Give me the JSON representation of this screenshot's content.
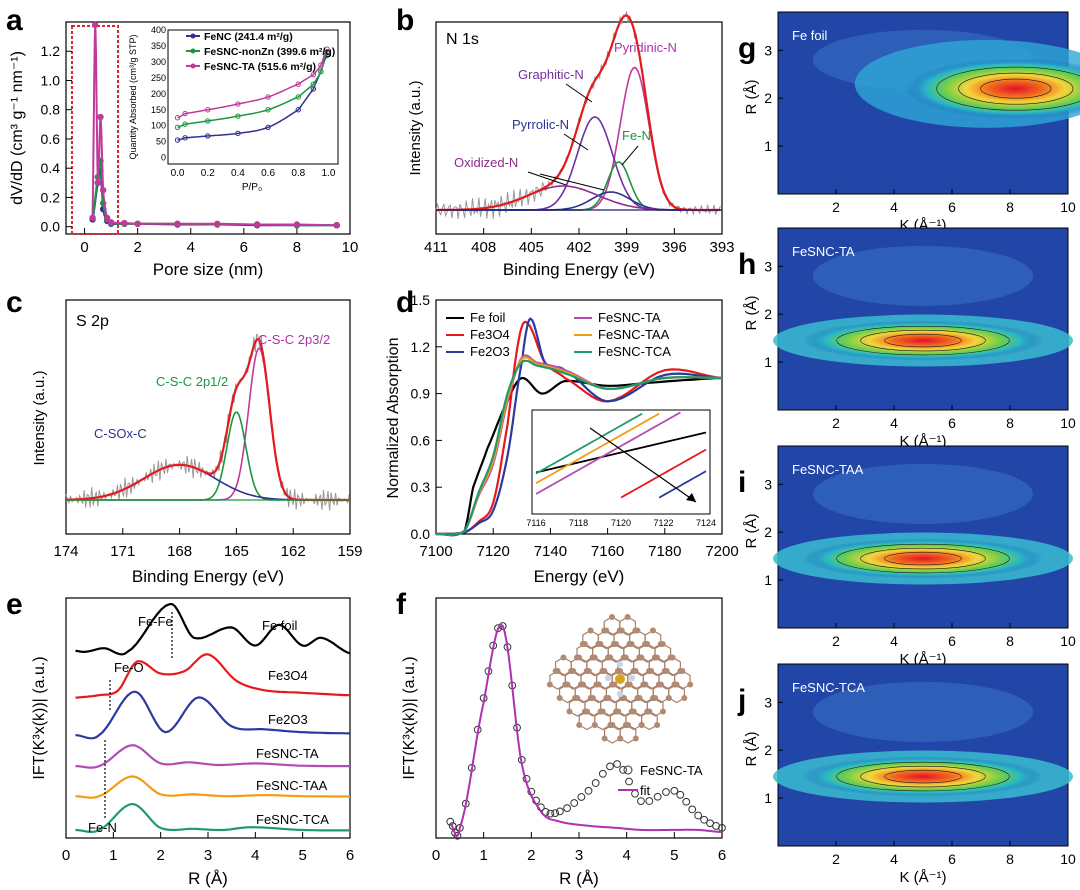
{
  "panels": {
    "a": {
      "letter": "a",
      "xlabel": "Pore size (nm)",
      "ylabel": "dV/dD (cm³ g⁻¹ nm⁻¹)",
      "xticks": [
        "0",
        "2",
        "4",
        "6",
        "8",
        "10"
      ],
      "yticks": [
        "0.0",
        "0.2",
        "0.4",
        "0.6",
        "0.8",
        "1.0",
        "1.2"
      ],
      "legend": [
        "FeNC (241.4 m²/g)",
        "FeSNC-nonZn (399.6 m²/g)",
        "FeSNC-TA (515.6 m²/g)"
      ],
      "inset": {
        "xlabel": "P/P₀",
        "ylabel": "Quantity Absorbed (cm³/g STP)",
        "xticks": [
          "0.0",
          "0.2",
          "0.4",
          "0.6",
          "0.8",
          "1.0"
        ],
        "yticks": [
          "0",
          "50",
          "100",
          "150",
          "200",
          "250",
          "300",
          "350",
          "400"
        ]
      }
    },
    "b": {
      "letter": "b",
      "title": "N 1s",
      "xlabel": "Binding Energy (eV)",
      "ylabel": "Intensity (a.u.)",
      "xticks": [
        "411",
        "408",
        "405",
        "402",
        "399",
        "396",
        "393"
      ],
      "labels": [
        "Pyridinic-N",
        "Graphitic-N",
        "Pyrrolic-N",
        "Fe-N",
        "Oxidized-N"
      ]
    },
    "c": {
      "letter": "c",
      "title": "S 2p",
      "xlabel": "Binding Energy (eV)",
      "ylabel": "Intensity (a.u.)",
      "xticks": [
        "174",
        "171",
        "168",
        "165",
        "162",
        "159"
      ],
      "labels": [
        "C-S-C 2p3/2",
        "C-S-C 2p1/2",
        "C-SOx-C"
      ]
    },
    "d": {
      "letter": "d",
      "xlabel": "Energy (eV)",
      "ylabel": "Normalized Absorption",
      "xticks": [
        "7100",
        "7120",
        "7140",
        "7160",
        "7180",
        "7200"
      ],
      "yticks": [
        "0.0",
        "0.3",
        "0.6",
        "0.9",
        "1.2",
        "1.5"
      ],
      "legend": [
        "Fe foil",
        "Fe3O4",
        "Fe2O3",
        "FeSNC-TA",
        "FeSNC-TAA",
        "FeSNC-TCA"
      ],
      "inset_xticks": [
        "7116",
        "7118",
        "7120",
        "7122",
        "7124"
      ]
    },
    "e": {
      "letter": "e",
      "xlabel": "R (Å)",
      "ylabel": "IFT(K³x(k))| (a.u.)",
      "xticks": [
        "0",
        "1",
        "2",
        "3",
        "4",
        "5",
        "6"
      ],
      "labels": [
        "Fe foil",
        "Fe3O4",
        "Fe2O3",
        "FeSNC-TA",
        "FeSNC-TAA",
        "FeSNC-TCA"
      ],
      "annotations": [
        "Fe-Fe",
        "Fe-O",
        "Fe-N"
      ]
    },
    "f": {
      "letter": "f",
      "xlabel": "R (Å)",
      "ylabel": "IFT(K³x(k))| (a.u.)",
      "xticks": [
        "0",
        "1",
        "2",
        "3",
        "4",
        "5",
        "6"
      ],
      "legend": [
        "FeSNC-TA",
        "fit"
      ]
    },
    "wt": [
      {
        "letter": "g",
        "title": "Fe foil"
      },
      {
        "letter": "h",
        "title": "FeSNC-TA"
      },
      {
        "letter": "i",
        "title": "FeSNC-TAA"
      },
      {
        "letter": "j",
        "title": "FeSNC-TCA"
      }
    ],
    "wt_axes": {
      "xlabel": "K (Å⁻¹)",
      "ylabel": "R (Å)",
      "xticks": [
        "2",
        "4",
        "6",
        "8",
        "10"
      ],
      "yticks": [
        "1",
        "2",
        "3"
      ]
    }
  },
  "chart_data": [
    {
      "type": "line",
      "panel": "a",
      "xlabel": "Pore size (nm)",
      "ylabel": "dV/dD (cm3 g-1 nm-1)",
      "xlim": [
        -0.7,
        10
      ],
      "ylim": [
        -0.05,
        1.4
      ],
      "series": [
        {
          "name": "FeNC (241.4 m²/g)",
          "color": "#2e3192",
          "x": [
            0.3,
            0.5,
            0.6,
            0.7,
            0.85,
            1.0,
            1.5,
            2.0,
            3.5,
            5.0,
            6.5,
            8.0,
            9.5
          ],
          "y": [
            0.05,
            0.3,
            0.38,
            0.12,
            0.04,
            0.02,
            0.02,
            0.02,
            0.015,
            0.015,
            0.01,
            0.01,
            0.01
          ]
        },
        {
          "name": "FeSNC-nonZn (399.6 m²/g)",
          "color": "#1a9641",
          "x": [
            0.3,
            0.5,
            0.6,
            0.7,
            0.85,
            1.0,
            1.5,
            2.0,
            3.5,
            5.0,
            6.5,
            8.0,
            9.5
          ],
          "y": [
            0.06,
            0.34,
            0.45,
            0.16,
            0.05,
            0.025,
            0.02,
            0.02,
            0.02,
            0.015,
            0.015,
            0.01,
            0.01
          ]
        },
        {
          "name": "FeSNC-TA (515.6 m²/g)",
          "color": "#c0399b",
          "x": [
            0.3,
            0.4,
            0.5,
            0.6,
            0.7,
            0.85,
            1.0,
            1.5,
            2.0,
            3.5,
            5.0,
            6.5,
            8.0,
            9.5
          ],
          "y": [
            0.06,
            1.38,
            0.3,
            0.75,
            0.25,
            0.06,
            0.03,
            0.025,
            0.02,
            0.02,
            0.02,
            0.015,
            0.015,
            0.01
          ]
        }
      ],
      "inset": {
        "xlabel": "P/P0",
        "ylabel": "Quantity Absorbed (cm3/g STP)",
        "xlim": [
          0,
          1.0
        ],
        "ylim": [
          0,
          400
        ],
        "series": [
          {
            "name": "FeNC",
            "x": [
              0.0,
              0.05,
              0.2,
              0.4,
              0.6,
              0.8,
              0.9,
              0.95,
              0.99
            ],
            "y": [
              55,
              62,
              68,
              76,
              95,
              150,
              215,
              270,
              320
            ]
          },
          {
            "name": "FeSNC-nonZn",
            "x": [
              0.0,
              0.05,
              0.2,
              0.4,
              0.6,
              0.8,
              0.9,
              0.95,
              0.99
            ],
            "y": [
              95,
              105,
              115,
              130,
              150,
              190,
              230,
              270,
              330
            ]
          },
          {
            "name": "FeSNC-TA",
            "x": [
              0.0,
              0.05,
              0.2,
              0.4,
              0.6,
              0.8,
              0.9,
              0.95,
              0.99
            ],
            "y": [
              125,
              138,
              150,
              168,
              190,
              230,
              260,
              290,
              340
            ]
          }
        ]
      }
    },
    {
      "type": "line",
      "panel": "b",
      "xlabel": "Binding Energy (eV)",
      "ylabel": "Intensity (a.u.)",
      "xlim": [
        411,
        393
      ],
      "series": [
        {
          "name": "Pyridinic-N",
          "center": 398.5,
          "amplitude": 0.95
        },
        {
          "name": "Graphitic-N",
          "center": 401.0,
          "amplitude": 0.62
        },
        {
          "name": "Fe-N",
          "center": 399.5,
          "amplitude": 0.32
        },
        {
          "name": "Pyrrolic-N",
          "center": 400.0,
          "amplitude": 0.12
        },
        {
          "name": "Oxidized-N",
          "center": 403.0,
          "amplitude": 0.16
        }
      ]
    },
    {
      "type": "line",
      "panel": "c",
      "xlabel": "Binding Energy (eV)",
      "ylabel": "Intensity (a.u.)",
      "xlim": [
        174,
        159
      ],
      "series": [
        {
          "name": "C-S-C 2p3/2",
          "center": 163.8,
          "amplitude": 0.95
        },
        {
          "name": "C-S-C 2p1/2",
          "center": 165.0,
          "amplitude": 0.55
        },
        {
          "name": "C-SOx-C",
          "center": 168.0,
          "amplitude": 0.22
        }
      ]
    },
    {
      "type": "line",
      "panel": "d",
      "xlabel": "Energy (eV)",
      "ylabel": "Normalized Absorption",
      "xlim": [
        7100,
        7200
      ],
      "ylim": [
        0,
        1.5
      ],
      "series": [
        {
          "name": "Fe foil",
          "color": "#000000",
          "x": [
            7100,
            7110,
            7113,
            7118,
            7125,
            7130,
            7137,
            7145,
            7160,
            7175,
            7190,
            7200
          ],
          "y": [
            0,
            0.02,
            0.3,
            0.55,
            0.85,
            1.0,
            0.9,
            0.98,
            0.95,
            0.97,
            0.99,
            1.0
          ]
        },
        {
          "name": "Fe3O4",
          "color": "#e41a1c",
          "x": [
            7100,
            7110,
            7115,
            7120,
            7125,
            7129,
            7132,
            7138,
            7145,
            7160,
            7180,
            7200
          ],
          "y": [
            0,
            0.01,
            0.08,
            0.2,
            0.7,
            1.25,
            1.35,
            1.1,
            1.0,
            0.85,
            1.05,
            1.0
          ]
        },
        {
          "name": "Fe2O3",
          "color": "#2b3a9e",
          "x": [
            7100,
            7110,
            7115,
            7120,
            7125,
            7130,
            7133,
            7138,
            7145,
            7160,
            7180,
            7200
          ],
          "y": [
            0,
            0.01,
            0.07,
            0.15,
            0.5,
            1.1,
            1.38,
            1.1,
            1.05,
            0.85,
            1.02,
            1.0
          ]
        },
        {
          "name": "FeSNC-TA",
          "color": "#b44bb5",
          "x": [
            7100,
            7110,
            7115,
            7120,
            7125,
            7130,
            7135,
            7145,
            7160,
            7180,
            7200
          ],
          "y": [
            0,
            0.02,
            0.25,
            0.45,
            0.85,
            1.13,
            1.1,
            1.05,
            0.93,
            1.0,
            1.0
          ]
        },
        {
          "name": "FeSNC-TAA",
          "color": "#f39c12",
          "x": [
            7100,
            7110,
            7115,
            7120,
            7125,
            7130,
            7135,
            7145,
            7160,
            7180,
            7200
          ],
          "y": [
            0,
            0.02,
            0.26,
            0.47,
            0.87,
            1.12,
            1.09,
            1.04,
            0.93,
            1.0,
            1.0
          ]
        },
        {
          "name": "FeSNC-TCA",
          "color": "#1f9a6b",
          "x": [
            7100,
            7110,
            7115,
            7120,
            7125,
            7130,
            7135,
            7145,
            7160,
            7180,
            7200
          ],
          "y": [
            0,
            0.02,
            0.27,
            0.5,
            0.9,
            1.1,
            1.08,
            1.03,
            0.93,
            1.0,
            1.0
          ]
        }
      ]
    },
    {
      "type": "line",
      "panel": "e",
      "xlabel": "R (Å)",
      "ylabel": "IFT(K3x(k))| (a.u.)",
      "xlim": [
        0,
        6
      ],
      "series": [
        {
          "name": "Fe foil",
          "color": "#000000",
          "peaks_R": [
            2.2,
            4.5
          ]
        },
        {
          "name": "Fe3O4",
          "color": "#e41a1c",
          "peaks_R": [
            1.5,
            3.0
          ]
        },
        {
          "name": "Fe2O3",
          "color": "#2b3a9e",
          "peaks_R": [
            1.45,
            2.8
          ]
        },
        {
          "name": "FeSNC-TA",
          "color": "#b44bb5",
          "peaks_R": [
            1.4
          ]
        },
        {
          "name": "FeSNC-TAA",
          "color": "#f39c12",
          "peaks_R": [
            1.4
          ]
        },
        {
          "name": "FeSNC-TCA",
          "color": "#1f9a6b",
          "peaks_R": [
            1.4
          ]
        }
      ]
    },
    {
      "type": "line",
      "panel": "f",
      "xlabel": "R (Å)",
      "ylabel": "IFT(K3x(k))| (a.u.)",
      "xlim": [
        0,
        6
      ],
      "series": [
        {
          "name": "FeSNC-TA",
          "color": "#333333",
          "x": [
            0.3,
            0.5,
            1.0,
            1.4,
            1.8,
            2.2,
            2.6,
            3.2,
            3.8,
            4.3,
            5.0,
            5.5,
            6.0
          ],
          "y": [
            0.05,
            0.02,
            0.65,
            1.0,
            0.35,
            0.12,
            0.1,
            0.2,
            0.33,
            0.15,
            0.2,
            0.08,
            0.02
          ]
        },
        {
          "name": "fit",
          "color": "#b030b0",
          "x": [
            0.3,
            0.5,
            1.0,
            1.4,
            1.8,
            2.2,
            2.6,
            3.2,
            3.8,
            4.3,
            5.0,
            5.5,
            6.0
          ],
          "y": [
            0.04,
            0.02,
            0.63,
            1.0,
            0.33,
            0.1,
            0.05,
            0.03,
            0.02,
            0.01,
            0.01,
            0.01,
            0.0
          ]
        }
      ]
    },
    {
      "type": "heatmap",
      "panel": "g-j",
      "xlabel": "K (Å-1)",
      "ylabel": "R (Å)",
      "xlim": [
        0,
        10
      ],
      "ylim": [
        0,
        3.8
      ],
      "maxima": [
        {
          "name": "Fe foil",
          "k": 8.2,
          "R": 2.2
        },
        {
          "name": "FeSNC-TA",
          "k": 5.0,
          "R": 1.45
        },
        {
          "name": "FeSNC-TAA",
          "k": 5.0,
          "R": 1.45
        },
        {
          "name": "FeSNC-TCA",
          "k": 5.0,
          "R": 1.45
        }
      ]
    }
  ]
}
